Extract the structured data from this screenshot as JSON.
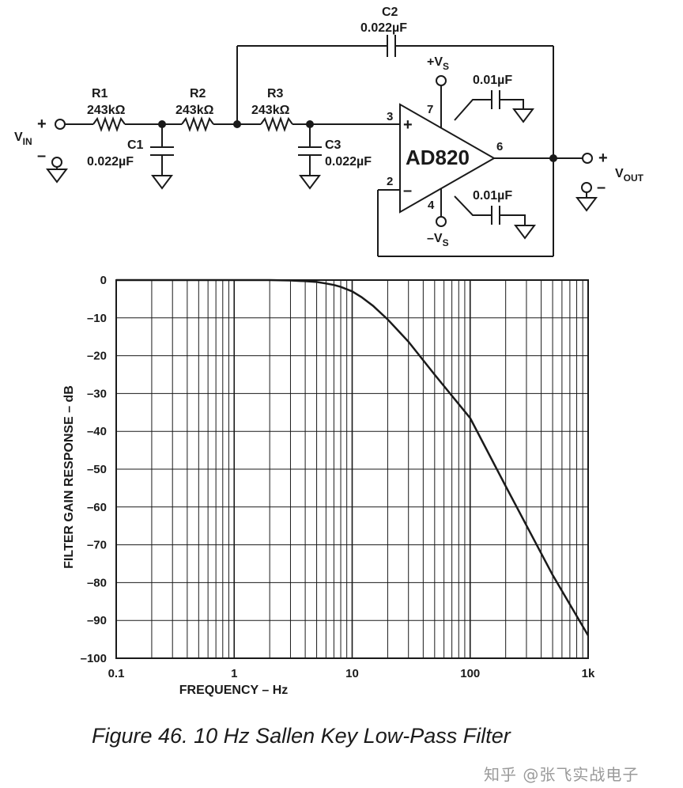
{
  "schematic": {
    "vin": {
      "main": "V",
      "sub": "IN",
      "plus": "+",
      "minus": "–"
    },
    "vout": {
      "main": "V",
      "sub": "OUT",
      "plus": "+",
      "minus": "–"
    },
    "r1": {
      "name": "R1",
      "value": "243kΩ"
    },
    "r2": {
      "name": "R2",
      "value": "243kΩ"
    },
    "r3": {
      "name": "R3",
      "value": "243kΩ"
    },
    "c1": {
      "name": "C1",
      "value": "0.022µF"
    },
    "c2": {
      "name": "C2",
      "value": "0.022µF"
    },
    "c3": {
      "name": "C3",
      "value": "0.022µF"
    },
    "bypass_top": "0.01µF",
    "bypass_bottom": "0.01µF",
    "opamp": "AD820",
    "pins": {
      "p3": "3",
      "p2": "2",
      "p7": "7",
      "p4": "4",
      "p6": "6",
      "plus": "+",
      "minus": "–"
    },
    "vs_pos": {
      "main": "+V",
      "sub": "S"
    },
    "vs_neg": {
      "main": "–V",
      "sub": "S"
    }
  },
  "chart_data": {
    "type": "line",
    "xscale": "log",
    "xlim": [
      0.1,
      1000
    ],
    "ylim": [
      -100,
      0
    ],
    "xlabel": "FREQUENCY – Hz",
    "ylabel": "FILTER GAIN RESPONSE – dB",
    "xticks": [
      "0.1",
      "1",
      "10",
      "100",
      "1k"
    ],
    "yticks": [
      "0",
      "–10",
      "–20",
      "–30",
      "–40",
      "–50",
      "–60",
      "–70",
      "–80",
      "–90",
      "–100"
    ],
    "grid": true,
    "series": [
      {
        "x": [
          0.1,
          1,
          2,
          3,
          4,
          5,
          6,
          7,
          8,
          10,
          12,
          15,
          20,
          30,
          50,
          100,
          200,
          500,
          1000
        ],
        "y": [
          0,
          0,
          0,
          -0.1,
          -0.3,
          -0.5,
          -0.9,
          -1.3,
          -1.8,
          -3,
          -4.5,
          -6.8,
          -10.4,
          -16.3,
          -25,
          -36.5,
          -54.5,
          -78,
          -94
        ]
      }
    ]
  },
  "caption": "Figure 46.  10 Hz Sallen Key Low-Pass Filter",
  "watermark": "知乎 @张飞实战电子"
}
